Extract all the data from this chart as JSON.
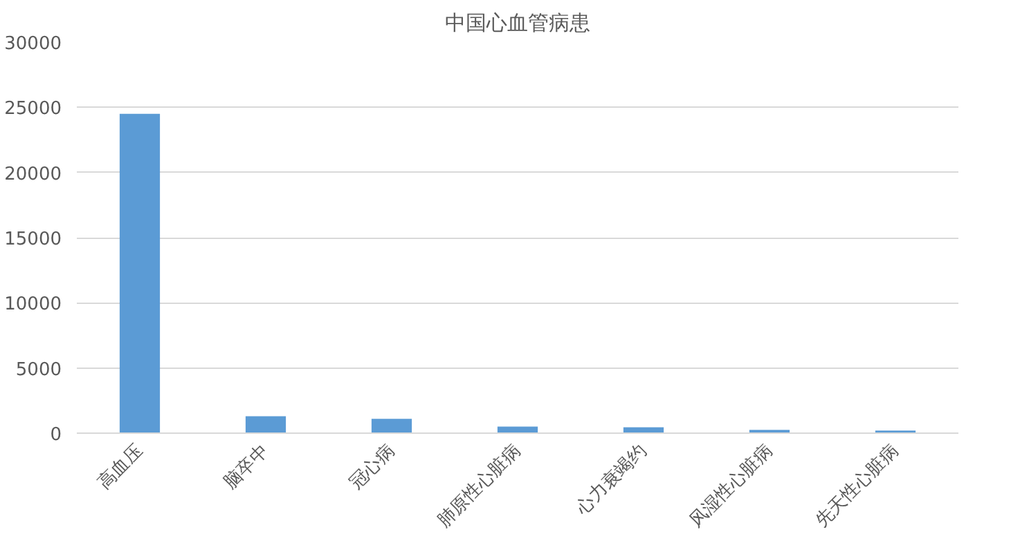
{
  "chart_data": {
    "type": "bar",
    "title": "中国心血管病患",
    "categories": [
      "高血压",
      "脑卒中",
      "冠心病",
      "肺原性心脏病",
      "心力衰竭约",
      "风湿性心脏病",
      "先天性心脏病"
    ],
    "values": [
      24500,
      1300,
      1100,
      500,
      450,
      250,
      200
    ],
    "color": "#5b9bd5",
    "ylim": [
      0,
      30000
    ],
    "yticks": [
      0,
      5000,
      10000,
      15000,
      20000,
      25000,
      30000
    ],
    "grid": "y"
  }
}
